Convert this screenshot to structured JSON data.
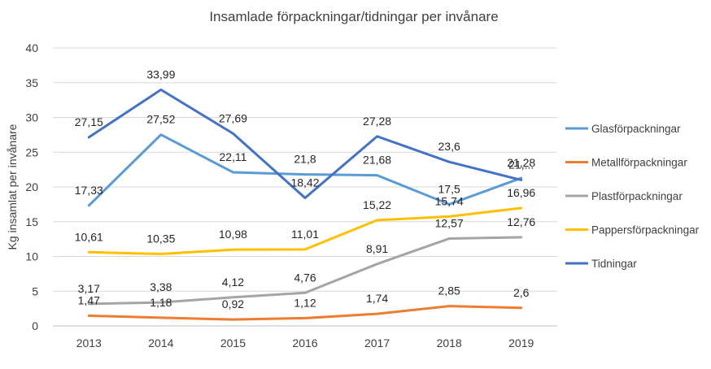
{
  "chart_data": {
    "type": "line",
    "title": "Insamlade förpackningar/tidningar per invånare",
    "ylabel": "Kg insamlat per invånare",
    "xlabel": "",
    "categories": [
      "2013",
      "2014",
      "2015",
      "2016",
      "2017",
      "2018",
      "2019"
    ],
    "ylim": [
      0,
      40
    ],
    "yticks": [
      "0",
      "5",
      "10",
      "15",
      "20",
      "25",
      "30",
      "35",
      "40"
    ],
    "grid": true,
    "legend_position": "right",
    "series": [
      {
        "name": "Glasförpackningar",
        "color": "#5b9bd5",
        "values": [
          17.33,
          27.52,
          22.11,
          21.8,
          21.68,
          17.5,
          21.28
        ],
        "labels": [
          "17,33",
          "27,52",
          "22,11",
          "21,8",
          "21,68",
          "17,5",
          "21,28"
        ]
      },
      {
        "name": "Metallförpackningar",
        "color": "#ed7d31",
        "values": [
          1.47,
          1.18,
          0.92,
          1.12,
          1.74,
          2.85,
          2.6
        ],
        "labels": [
          "1,47",
          "1,18",
          "0,92",
          "1,12",
          "1,74",
          "2,85",
          "2,6"
        ]
      },
      {
        "name": "Plastförpackningar",
        "color": "#a5a5a5",
        "values": [
          3.17,
          3.38,
          4.12,
          4.76,
          8.91,
          12.57,
          12.76
        ],
        "labels": [
          "3,17",
          "3,38",
          "4,12",
          "4,76",
          "8,91",
          "12,57",
          "12,76"
        ]
      },
      {
        "name": "Pappersförpackningar",
        "color": "#ffc000",
        "values": [
          10.61,
          10.35,
          10.98,
          11.01,
          15.22,
          15.74,
          16.96
        ],
        "labels": [
          "10,61",
          "10,35",
          "10,98",
          "11,01",
          "15,22",
          "15,74",
          "16,96"
        ]
      },
      {
        "name": "Tidningar",
        "color": "#4472c4",
        "values": [
          27.15,
          33.99,
          27.69,
          18.42,
          27.28,
          23.6,
          21.0
        ],
        "labels": [
          "27,15",
          "33,99",
          "27,69",
          "18,42",
          "27,28",
          "23,6",
          "21,..."
        ]
      }
    ]
  }
}
